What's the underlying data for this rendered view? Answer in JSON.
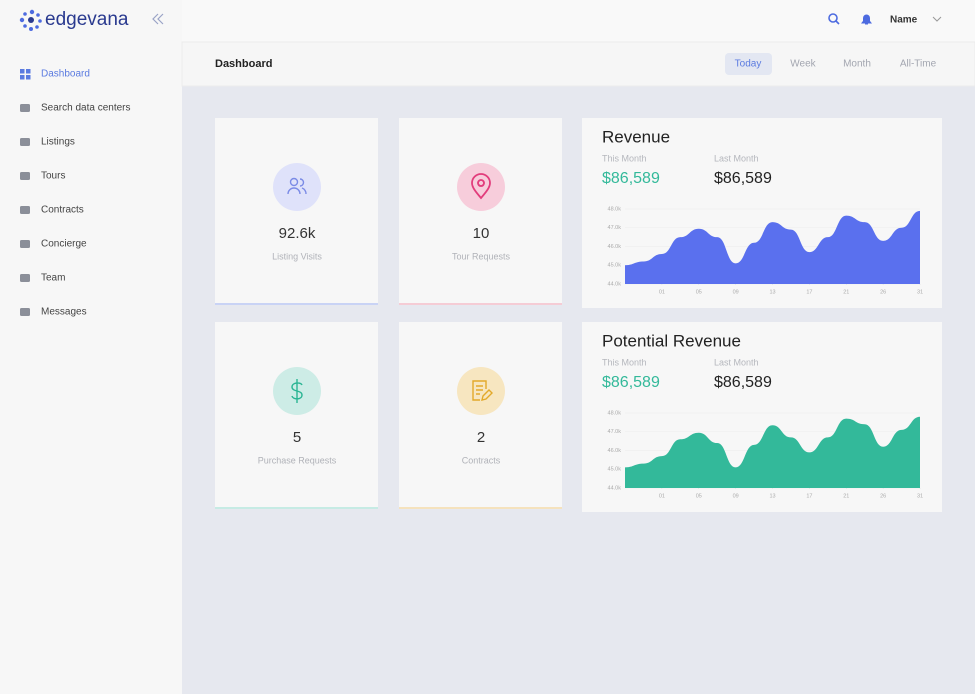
{
  "logo": "edgevana",
  "topbar": {
    "user": "Name"
  },
  "nav": [
    "Dashboard",
    "Search data centers",
    "Listings",
    "Tours",
    "Contracts",
    "Concierge",
    "Team",
    "Messages"
  ],
  "page_title": "Dashboard",
  "tabs": [
    "Today",
    "Week",
    "Month",
    "All-Time"
  ],
  "stats": [
    {
      "value": "92.6k",
      "label": "Listing Visits"
    },
    {
      "value": 10,
      "label": "Tour Requests"
    },
    {
      "value": 5,
      "label": "Purchase Requests"
    },
    {
      "value": 2,
      "label": "Contracts"
    }
  ],
  "charts": [
    {
      "type": "area",
      "title": "Revenue",
      "this_month_label": "This Month",
      "this_month": "$86,589",
      "last_month_label": "Last Month",
      "last_month": "$86,589",
      "color": "#5a70ee",
      "grid": true,
      "x": [
        -1,
        -0.5,
        0,
        0.5,
        1,
        1.5,
        2,
        2.5,
        3,
        3.5,
        4,
        4.5,
        5,
        5.5,
        6,
        6.5,
        7
      ],
      "values": [
        45000,
        45200,
        45600,
        46500,
        46950,
        46500,
        45100,
        46200,
        47300,
        46900,
        45700,
        46500,
        47650,
        47300,
        46300,
        47000,
        47900
      ],
      "xlim": [
        -1,
        7
      ],
      "xticks": [
        {
          "value": 0,
          "label": "01"
        },
        {
          "value": 1,
          "label": "05"
        },
        {
          "value": 2,
          "label": "09"
        },
        {
          "value": 3,
          "label": "13"
        },
        {
          "value": 4,
          "label": "17"
        },
        {
          "value": 5,
          "label": "21"
        },
        {
          "value": 6,
          "label": "26"
        },
        {
          "value": 7,
          "label": "31"
        }
      ],
      "ylim": [
        44000,
        48000
      ],
      "yticks": [
        {
          "value": 44000,
          "label": "44.0k"
        },
        {
          "value": 45000,
          "label": "45.0k"
        },
        {
          "value": 46000,
          "label": "46.0k"
        },
        {
          "value": 47000,
          "label": "47.0k"
        },
        {
          "value": 48000,
          "label": "48.0k"
        }
      ]
    },
    {
      "type": "area",
      "title": "Potential Revenue",
      "this_month_label": "This Month",
      "this_month": "$86,589",
      "last_month_label": "Last Month",
      "last_month": "$86,589",
      "color": "#33b99a",
      "grid": true,
      "x": [
        -1,
        -0.5,
        0,
        0.5,
        1,
        1.5,
        2,
        2.5,
        3,
        3.5,
        4,
        4.5,
        5,
        5.5,
        6,
        6.5,
        7
      ],
      "values": [
        45100,
        45300,
        45700,
        46600,
        46950,
        46400,
        45100,
        46300,
        47350,
        46700,
        45900,
        46700,
        47700,
        47400,
        46200,
        47100,
        47800
      ],
      "xlim": [
        -1,
        7
      ],
      "xticks": [
        {
          "value": 0,
          "label": "01"
        },
        {
          "value": 1,
          "label": "05"
        },
        {
          "value": 2,
          "label": "09"
        },
        {
          "value": 3,
          "label": "13"
        },
        {
          "value": 4,
          "label": "17"
        },
        {
          "value": 5,
          "label": "21"
        },
        {
          "value": 6,
          "label": "26"
        },
        {
          "value": 7,
          "label": "31"
        }
      ],
      "ylim": [
        44000,
        48000
      ],
      "yticks": [
        {
          "value": 44000,
          "label": "44.0k"
        },
        {
          "value": 45000,
          "label": "45.0k"
        },
        {
          "value": 46000,
          "label": "46.0k"
        },
        {
          "value": 47000,
          "label": "47.0k"
        },
        {
          "value": 48000,
          "label": "48.0k"
        }
      ]
    }
  ]
}
